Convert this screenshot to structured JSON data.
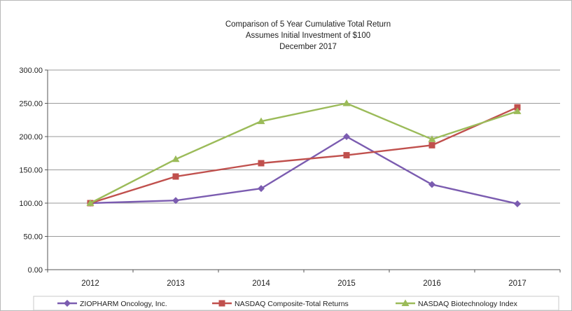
{
  "chart_data": {
    "type": "line",
    "title": [
      "Comparison of 5 Year Cumulative Total Return",
      "Assumes Initial Investment of $100",
      "December 2017"
    ],
    "xlabel": "",
    "ylabel": "",
    "categories": [
      "2012",
      "2013",
      "2014",
      "2015",
      "2016",
      "2017"
    ],
    "ylim": [
      0,
      300
    ],
    "yticks": [
      "0.00",
      "50.00",
      "100.00",
      "150.00",
      "200.00",
      "250.00",
      "300.00"
    ],
    "grid": true,
    "legend_position": "bottom",
    "series": [
      {
        "name": "ZIOPHARM Oncology, Inc.",
        "color": "#7b5cb0",
        "marker": "diamond",
        "values": [
          100,
          104,
          122,
          200,
          128,
          99
        ]
      },
      {
        "name": "NASDAQ Composite-Total Returns",
        "color": "#c0504d",
        "marker": "square",
        "values": [
          100,
          140,
          160,
          172,
          187,
          244
        ]
      },
      {
        "name": "NASDAQ Biotechnology Index",
        "color": "#9bbb59",
        "marker": "triangle",
        "values": [
          100,
          166,
          223,
          250,
          196,
          238
        ]
      }
    ]
  }
}
